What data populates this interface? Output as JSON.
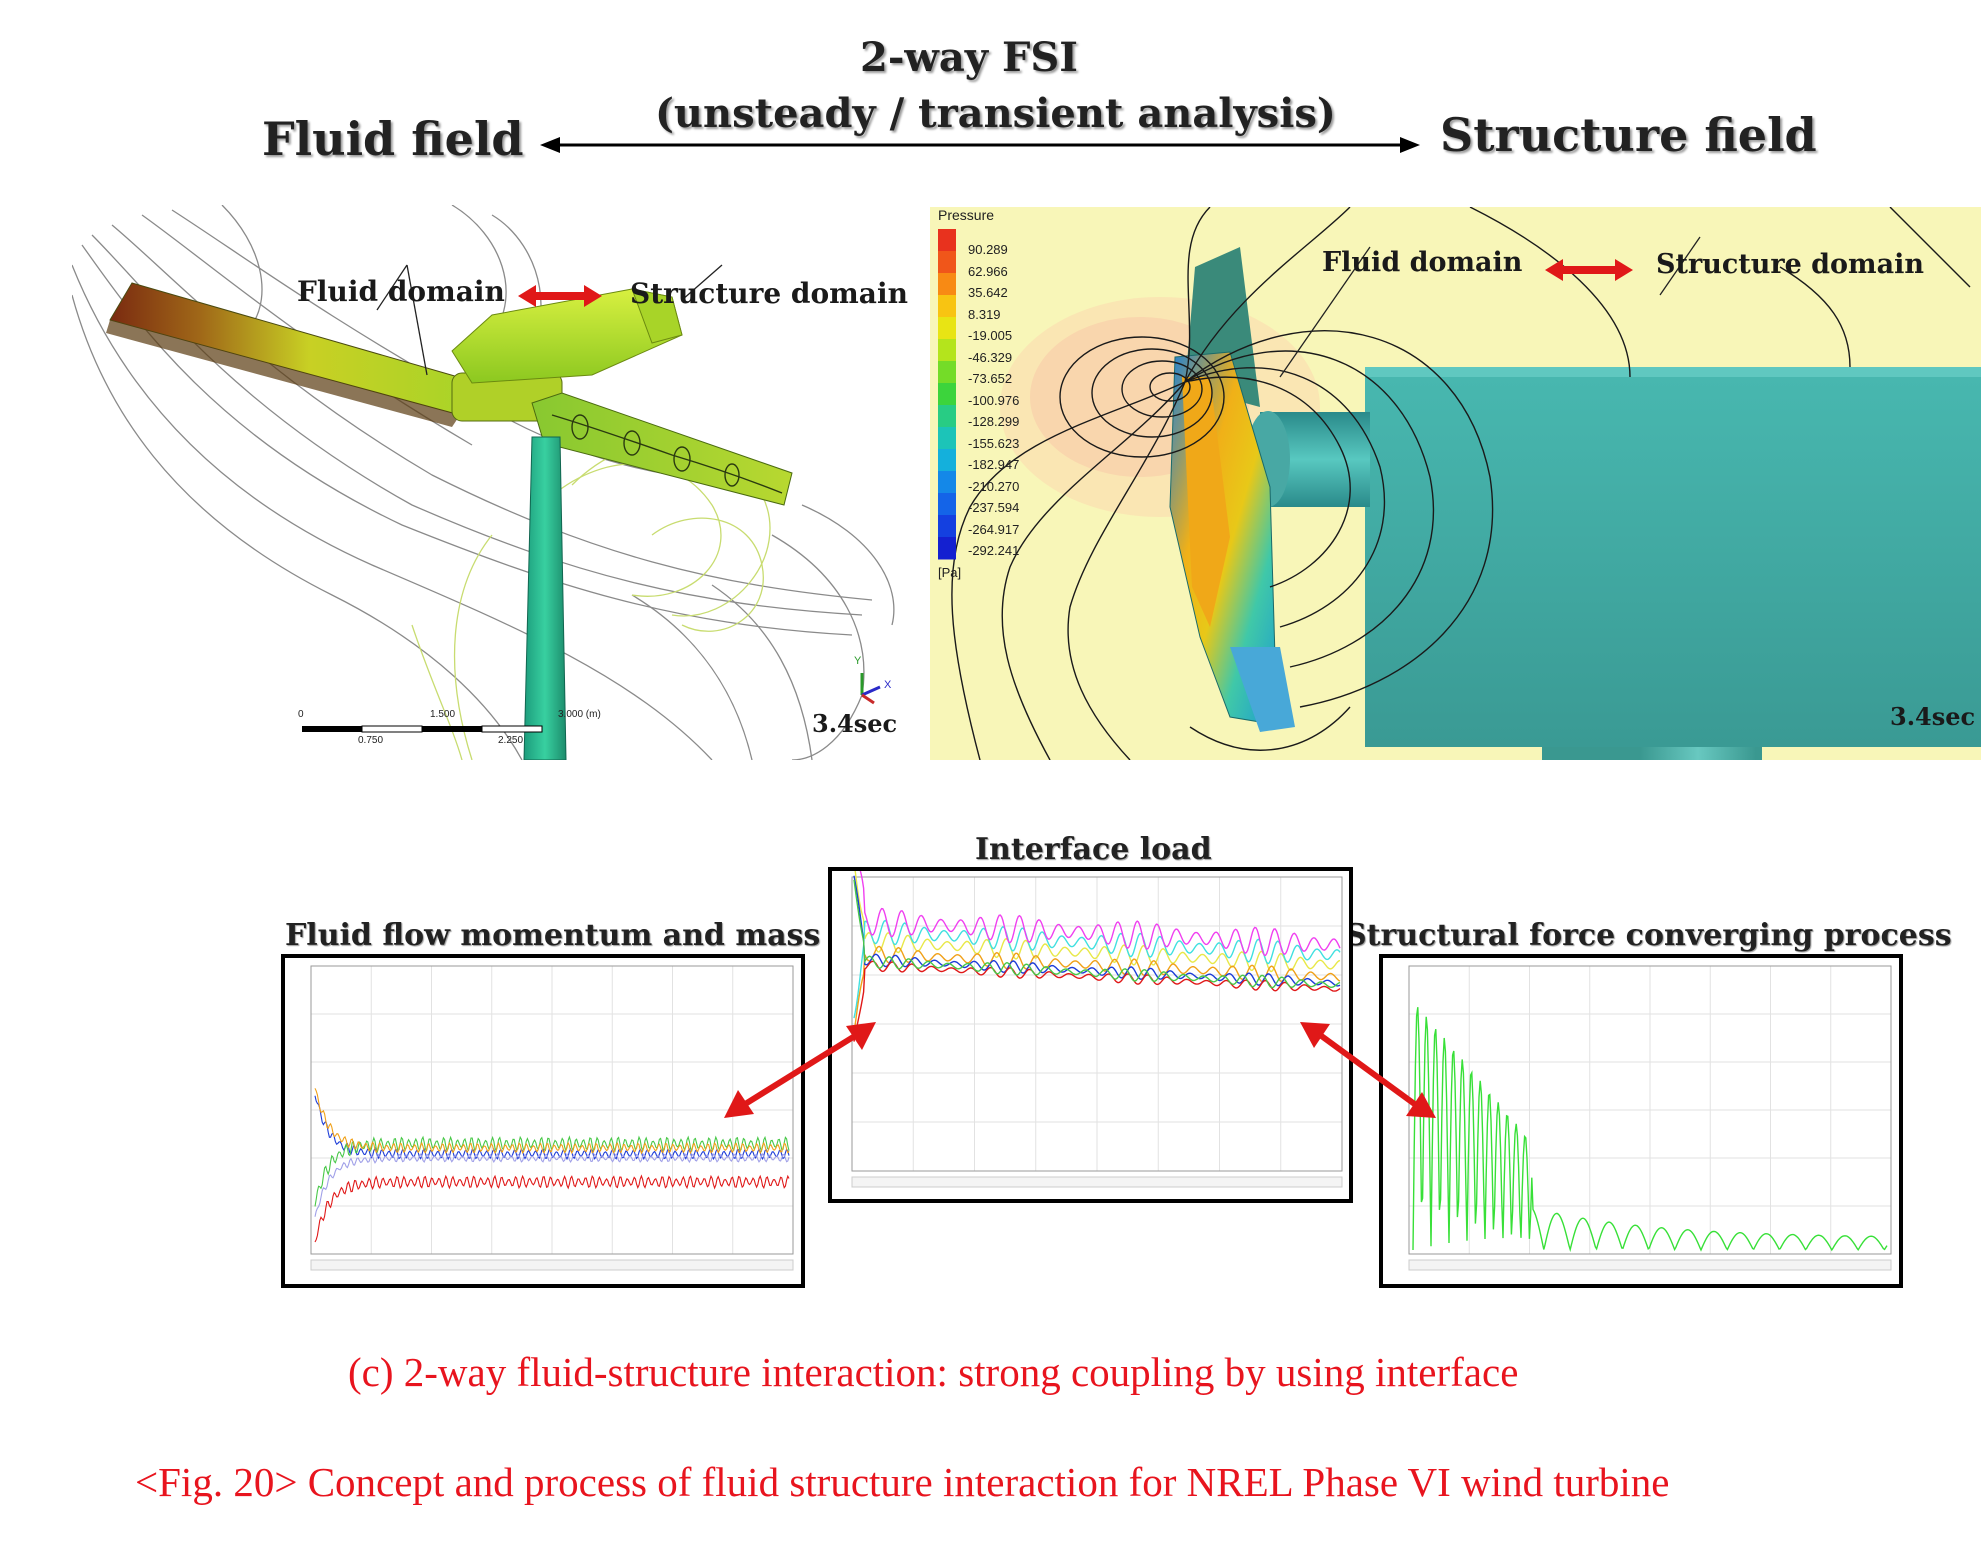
{
  "header": {
    "fsi_title": "2-way FSI",
    "fsi_subtitle": "(unsteady / transient analysis)",
    "left_field": "Fluid field",
    "right_field": "Structure field"
  },
  "left_panel": {
    "fluid_domain": "Fluid domain",
    "structure_domain": "Structure domain",
    "time": "3.4sec",
    "scale_ticks_top": [
      "0",
      "1.500",
      "3.000 (m)"
    ],
    "scale_ticks_bottom": [
      "0.750",
      "2.250"
    ],
    "axis_y": "Y",
    "axis_x": "X"
  },
  "right_panel": {
    "fluid_domain": "Fluid domain",
    "structure_domain": "Structure domain",
    "time": "3.4sec",
    "legend_title": "Pressure",
    "legend_unit": "[Pa]",
    "legend_values": [
      "90.289",
      "62.966",
      "35.642",
      "8.319",
      "-19.005",
      "-46.329",
      "-73.652",
      "-100.976",
      "-128.299",
      "-155.623",
      "-182.947",
      "-210.270",
      "-237.594",
      "-264.917",
      "-292.241"
    ],
    "legend_colors": [
      "#e8321e",
      "#f0561a",
      "#f88a14",
      "#f8c412",
      "#e8e414",
      "#b4e41c",
      "#74dc28",
      "#3cd43c",
      "#28cc84",
      "#1cc4b8",
      "#14b0dc",
      "#1488e8",
      "#1464e8",
      "#1440e0",
      "#1420d0"
    ]
  },
  "charts": {
    "fluid_title": "Fluid flow momentum and mass",
    "interface_title": "Interface load",
    "structural_title": "Structural force converging process"
  },
  "captions": {
    "sub": "(c) 2-way fluid-structure interaction: strong coupling by using interface",
    "fig": "<Fig. 20> Concept and process of fluid structure interaction for NREL Phase VI wind turbine"
  },
  "colors": {
    "caption_red": "#e8141e",
    "arrow_red": "#e01818"
  }
}
